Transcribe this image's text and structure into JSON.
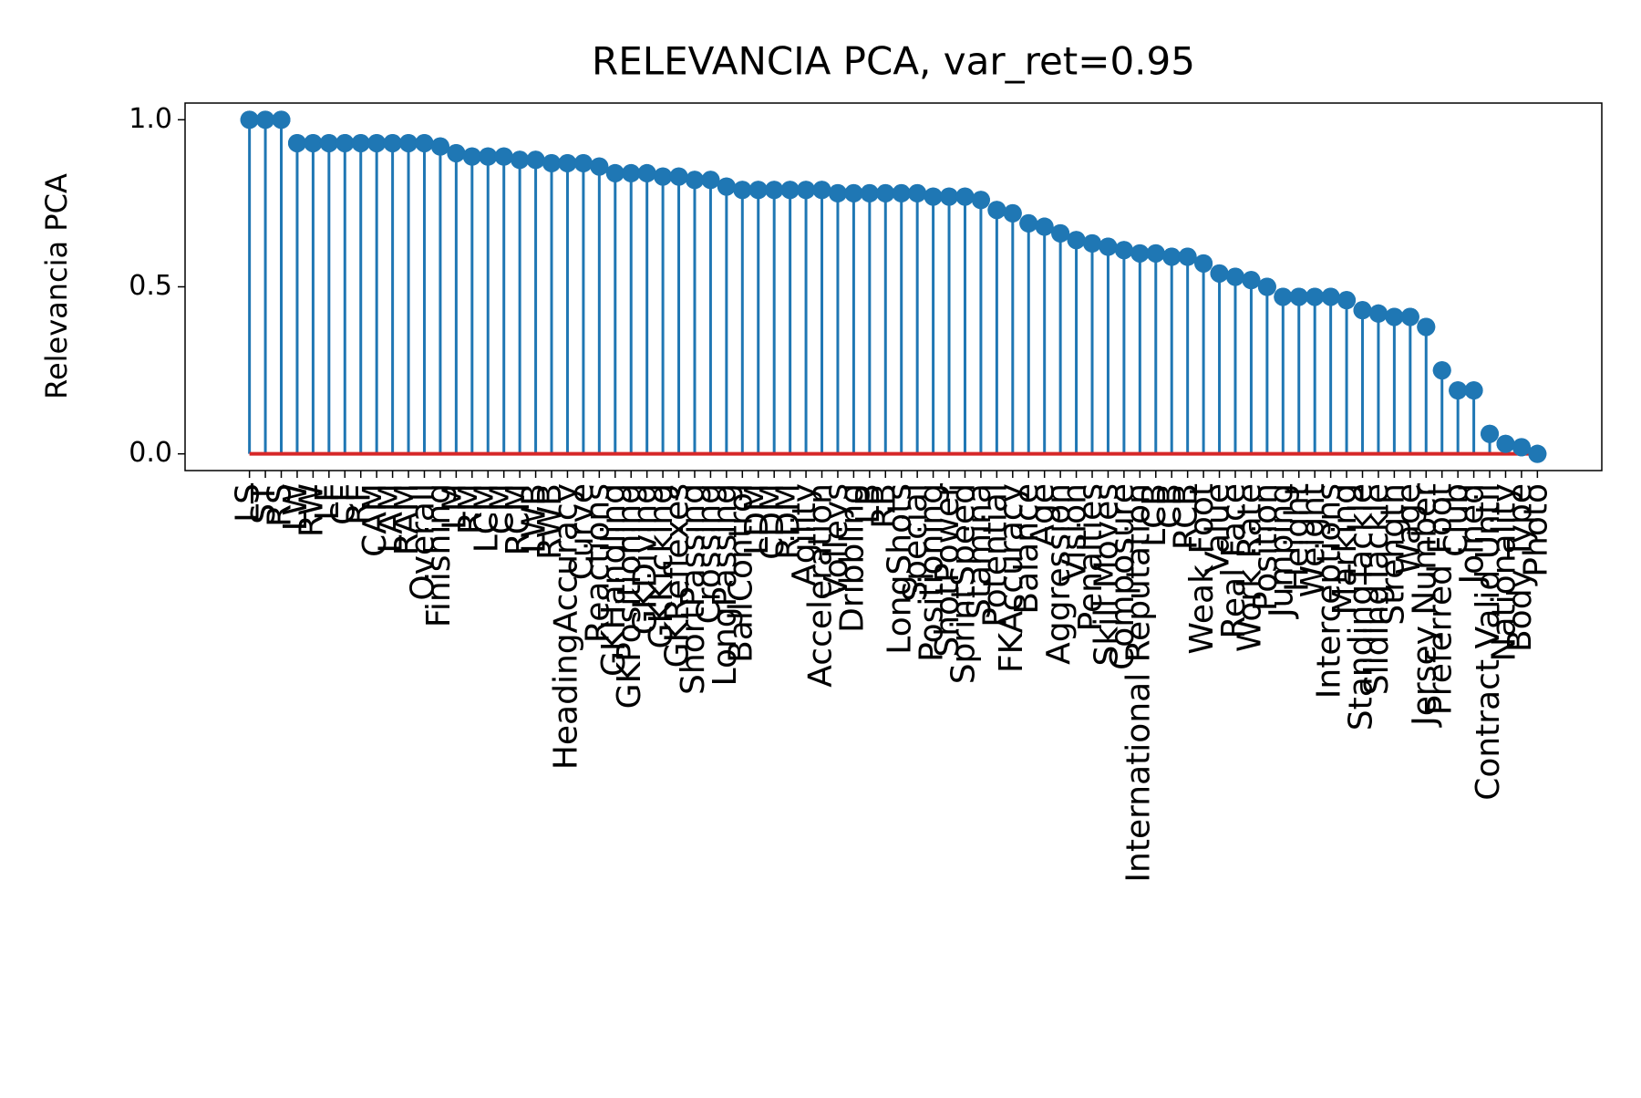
{
  "chart_data": {
    "type": "stem",
    "title": "RELEVANCIA PCA, var_ret=0.95",
    "y_label": "Relevancia PCA",
    "categories": [
      "LS",
      "ST",
      "RS",
      "LW",
      "RW",
      "LF",
      "CF",
      "RF",
      "CAM",
      "LAM",
      "RAM",
      "Overall",
      "Finishing",
      "LM",
      "RM",
      "LCM",
      "CM",
      "RCM",
      "LWB",
      "RWB",
      "HeadingAccuracy",
      "Curve",
      "Reactions",
      "GKHandling",
      "GKPositioning",
      "GKDiving",
      "GKKicking",
      "GKReflexes",
      "ShortPassing",
      "Crossing",
      "LongPassing",
      "BallControl",
      "LDM",
      "CDM",
      "RDM",
      "Agility",
      "Acceleration",
      "Volleys",
      "Dribbling",
      "LB",
      "RB",
      "LongShots",
      "Special",
      "Positioning",
      "ShotPower",
      "SprintSpeed",
      "Stamina",
      "Potential",
      "FKAccuracy",
      "Balance",
      "Age",
      "Aggression",
      "Vision",
      "Penalties",
      "Skill Moves",
      "Composure",
      "International Reputation",
      "LCB",
      "CB",
      "RCB",
      "Weak Foot",
      "Value",
      "Real Face",
      "Work Rate",
      "Position",
      "Jumping",
      "Height",
      "Weight",
      "Interceptions",
      "Marking",
      "StandingTackle",
      "SlidingTackle",
      "Strength",
      "Wage",
      "Jersey Number",
      "Preferred Foot",
      "Club",
      "Joined",
      "Contract Valid Until",
      "Nationality",
      "Body Type",
      "Photo"
    ],
    "values": [
      1.0,
      1.0,
      1.0,
      0.93,
      0.93,
      0.93,
      0.93,
      0.93,
      0.93,
      0.93,
      0.93,
      0.93,
      0.92,
      0.9,
      0.89,
      0.89,
      0.89,
      0.88,
      0.88,
      0.87,
      0.87,
      0.87,
      0.86,
      0.84,
      0.84,
      0.84,
      0.83,
      0.83,
      0.82,
      0.82,
      0.8,
      0.79,
      0.79,
      0.79,
      0.79,
      0.79,
      0.79,
      0.78,
      0.78,
      0.78,
      0.78,
      0.78,
      0.78,
      0.77,
      0.77,
      0.77,
      0.76,
      0.73,
      0.72,
      0.69,
      0.68,
      0.66,
      0.64,
      0.63,
      0.62,
      0.61,
      0.6,
      0.6,
      0.59,
      0.59,
      0.57,
      0.54,
      0.53,
      0.52,
      0.5,
      0.47,
      0.47,
      0.47,
      0.47,
      0.46,
      0.43,
      0.42,
      0.41,
      0.41,
      0.38,
      0.25,
      0.19,
      0.19,
      0.06,
      0.03,
      0.02,
      0.0
    ],
    "color": "#1f77b4",
    "baseline_color": "#d62728",
    "ylim": [
      -0.05,
      1.05
    ],
    "yticks": [
      {
        "value": 0,
        "label": "0.0"
      },
      0.5,
      {
        "value": 1,
        "label": "1.0"
      }
    ]
  }
}
